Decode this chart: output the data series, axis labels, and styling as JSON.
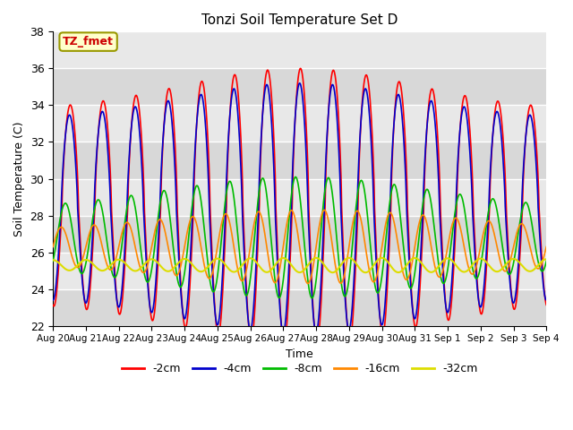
{
  "title": "Tonzi Soil Temperature Set D",
  "xlabel": "Time",
  "ylabel": "Soil Temperature (C)",
  "ylim": [
    22,
    38
  ],
  "xlim": [
    0,
    15.0
  ],
  "plot_bg_color": "#e8e8e8",
  "fig_bg_color": "#ffffff",
  "annotation_text": "TZ_fmet",
  "annotation_bg": "#ffffcc",
  "annotation_border": "#999900",
  "lines": {
    "-2cm": {
      "color": "#ff0000",
      "lw": 1.2
    },
    "-4cm": {
      "color": "#0000cc",
      "lw": 1.2
    },
    "-8cm": {
      "color": "#00bb00",
      "lw": 1.2
    },
    "-16cm": {
      "color": "#ff8800",
      "lw": 1.2
    },
    "-32cm": {
      "color": "#dddd00",
      "lw": 1.5
    }
  },
  "xtick_labels": [
    "Aug 20",
    "Aug 21",
    "Aug 22",
    "Aug 23",
    "Aug 24",
    "Aug 25",
    "Aug 26",
    "Aug 27",
    "Aug 28",
    "Aug 29",
    "Aug 30",
    "Aug 31",
    "Sep 1",
    "Sep 2",
    "Sep 3",
    "Sep 4"
  ],
  "xtick_positions": [
    0,
    1,
    2,
    3,
    4,
    5,
    6,
    7,
    8,
    9,
    10,
    11,
    12,
    13,
    14,
    15
  ],
  "n_days": 15,
  "pts_per_day": 96
}
